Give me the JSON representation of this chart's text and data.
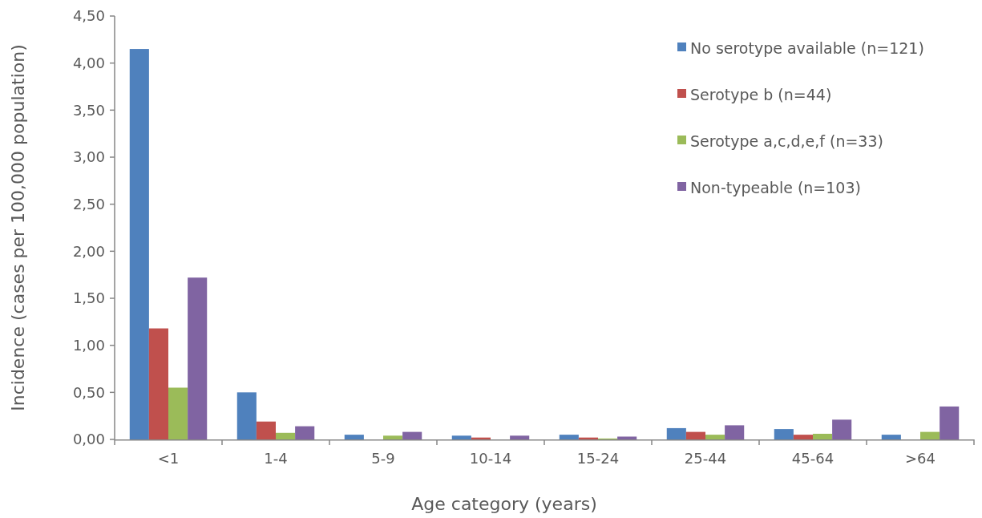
{
  "chart_data": {
    "type": "bar",
    "xlabel": "Age category (years)",
    "ylabel": "Incidence (cases per 100,000 population)",
    "categories": [
      "<1",
      "1-4",
      "5-9",
      "10-14",
      "15-24",
      "25-44",
      "45-64",
      ">64"
    ],
    "series": [
      {
        "name": "No serotype available (n=121)",
        "color": "#4f81bd",
        "values": [
          4.15,
          0.5,
          0.05,
          0.04,
          0.05,
          0.12,
          0.11,
          0.05
        ]
      },
      {
        "name": "Serotype b (n=44)",
        "color": "#c0504d",
        "values": [
          1.18,
          0.19,
          0,
          0.02,
          0.02,
          0.08,
          0.05,
          0
        ]
      },
      {
        "name": "Serotype a,c,d,e,f (n=33)",
        "color": "#9bbb59",
        "values": [
          0.55,
          0.07,
          0.04,
          0,
          0.01,
          0.05,
          0.06,
          0.08
        ]
      },
      {
        "name": "Non-typeable (n=103)",
        "color": "#8064a2",
        "values": [
          1.72,
          0.14,
          0.08,
          0.04,
          0.03,
          0.15,
          0.21,
          0.35
        ]
      }
    ],
    "ylim": [
      0,
      4.5
    ],
    "yticks": [
      {
        "value": 0,
        "label": "0,00"
      },
      {
        "value": 0.5,
        "label": "0,50"
      },
      {
        "value": 1,
        "label": "1,00"
      },
      {
        "value": 1.5,
        "label": "1,50"
      },
      {
        "value": 2,
        "label": "2,00"
      },
      {
        "value": 2.5,
        "label": "2,50"
      },
      {
        "value": 3,
        "label": "3,00"
      },
      {
        "value": 3.5,
        "label": "3,50"
      },
      {
        "value": 4,
        "label": "4,00"
      },
      {
        "value": 4.5,
        "label": "4,50"
      }
    ],
    "legend": "top right"
  }
}
